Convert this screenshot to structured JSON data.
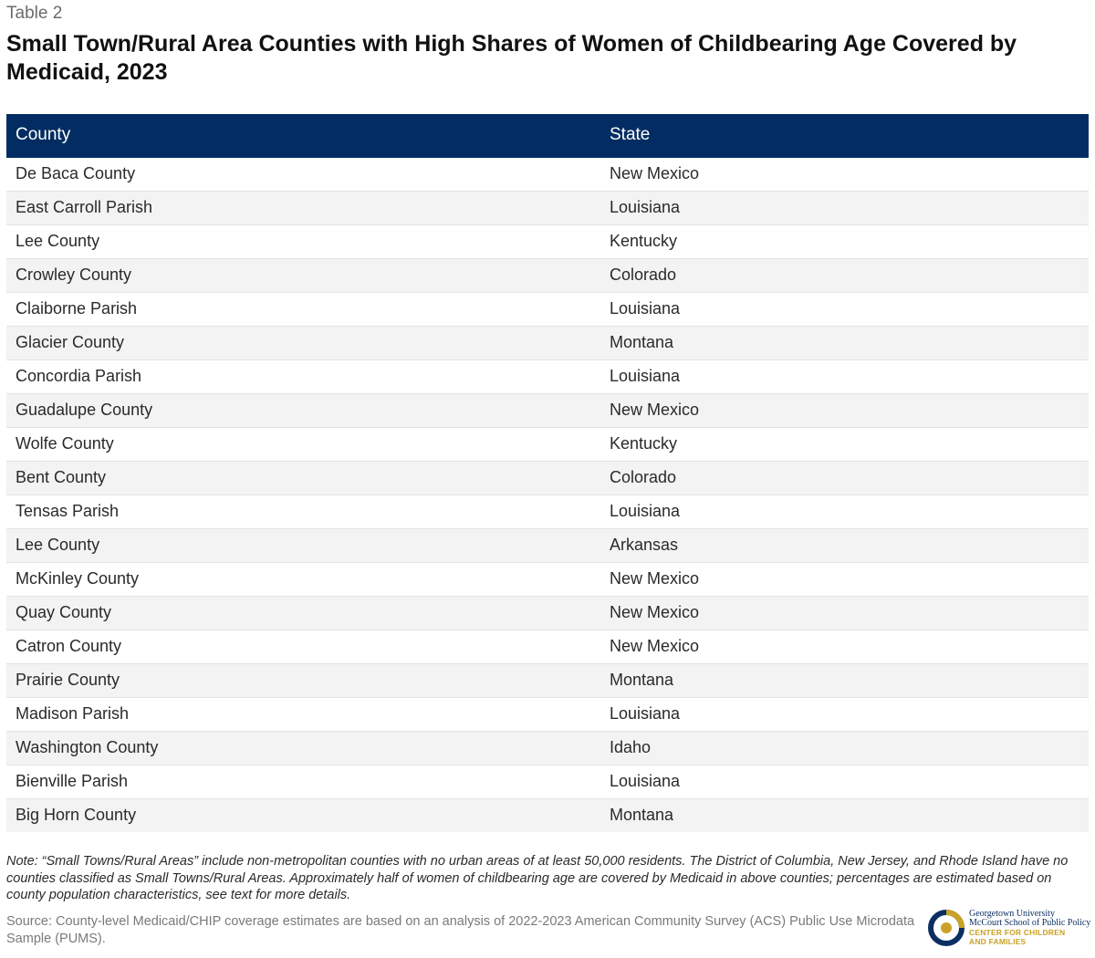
{
  "table_label": "Table 2",
  "title": "Small Town/Rural Area Counties with High Shares of Women of Childbearing Age Covered by Medicaid, 2023",
  "columns": [
    "County",
    "State"
  ],
  "rows": [
    [
      "De Baca County",
      "New Mexico"
    ],
    [
      "East Carroll Parish",
      "Louisiana"
    ],
    [
      "Lee County",
      "Kentucky"
    ],
    [
      "Crowley County",
      "Colorado"
    ],
    [
      "Claiborne Parish",
      "Louisiana"
    ],
    [
      "Glacier County",
      "Montana"
    ],
    [
      "Concordia Parish",
      "Louisiana"
    ],
    [
      "Guadalupe County",
      "New Mexico"
    ],
    [
      "Wolfe County",
      "Kentucky"
    ],
    [
      "Bent County",
      "Colorado"
    ],
    [
      "Tensas Parish",
      "Louisiana"
    ],
    [
      "Lee County",
      "Arkansas"
    ],
    [
      "McKinley County",
      "New Mexico"
    ],
    [
      "Quay County",
      "New Mexico"
    ],
    [
      "Catron County",
      "New Mexico"
    ],
    [
      "Prairie County",
      "Montana"
    ],
    [
      "Madison Parish",
      "Louisiana"
    ],
    [
      "Washington County",
      "Idaho"
    ],
    [
      "Bienville Parish",
      "Louisiana"
    ],
    [
      "Big Horn County",
      "Montana"
    ]
  ],
  "note": "Note: “Small Towns/Rural Areas” include non-metropolitan counties with no urban areas of at least 50,000 residents. The District of Columbia, New Jersey, and Rhode Island have no counties classified as Small Towns/Rural Areas. Approximately half of women of childbearing age are covered by Medicaid in above counties; percentages are estimated based on county population characteristics, see text for more details.",
  "source": "Source: County-level Medicaid/CHIP coverage estimates are based on an analysis of 2022-2023 American Community Survey (ACS) Public Use Microdata Sample (PUMS).",
  "logo": {
    "line1": "Georgetown University",
    "line2": "McCourt School of Public Policy",
    "line3": "CENTER FOR CHILDREN",
    "line4": "AND FAMILIES"
  },
  "colors": {
    "header_bg": "#032d62",
    "header_text": "#ffffff",
    "stripe": "#f3f3f3",
    "logo_navy": "#0b2f63",
    "logo_gold": "#c9a227"
  }
}
